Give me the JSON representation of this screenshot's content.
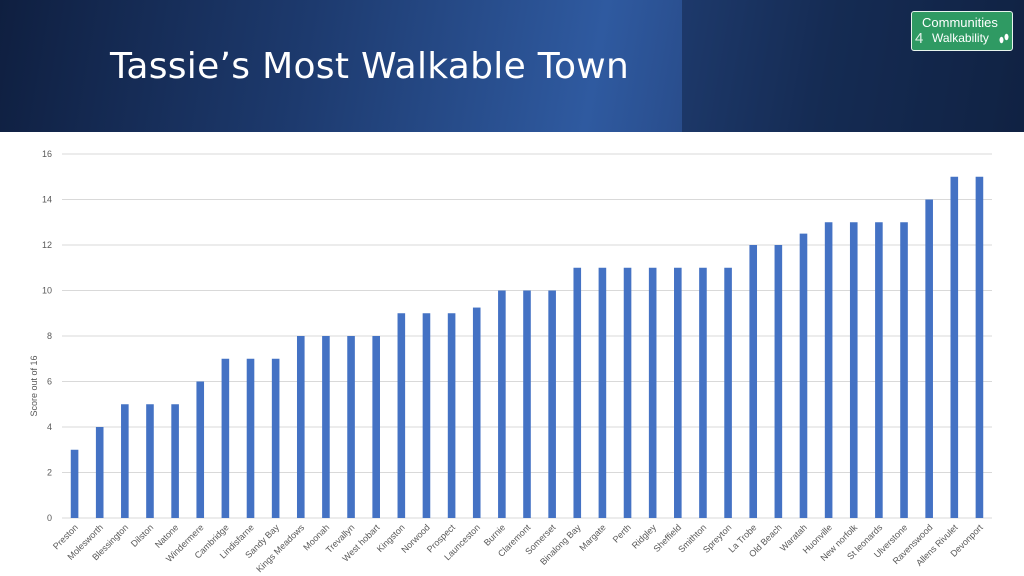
{
  "slide": {
    "title": "Tassie’s Most Walkable Town",
    "logo": {
      "line1": "Communities",
      "line2": "Walkability",
      "number": "4",
      "icon": "footprints-icon"
    }
  },
  "colors": {
    "bar": "#4472c4",
    "grid": "#d9d9d9",
    "header": "#1d3a6e",
    "logo": "#2f9a63"
  },
  "chart_data": {
    "type": "bar",
    "title": "",
    "xlabel": "",
    "ylabel": "Score out of 16",
    "ylim": [
      0,
      16
    ],
    "yticks": [
      0,
      2,
      4,
      6,
      8,
      10,
      12,
      14,
      16
    ],
    "grid": true,
    "categories": [
      "Preston",
      "Molesworth",
      "Blessington",
      "Dilston",
      "Natone",
      "Windermere",
      "Cambridge",
      "Lindisfarne",
      "Sandy Bay",
      "Kings Meadows",
      "Moonah",
      "Trevallyn",
      "West hobart",
      "Kingston",
      "Norwood",
      "Prospect",
      "Launceston",
      "Burnie",
      "Claremont",
      "Somerset",
      "Binalong Bay",
      "Margate",
      "Perth",
      "Ridgley",
      "Sheffield",
      "Smithton",
      "Spreyton",
      "La Trobe",
      "Old Beach",
      "Waratah",
      "Huonville",
      "New norfolk",
      "St leonards",
      "Ulverstone",
      "Ravenswood",
      "Allens Rivulet",
      "Devonport"
    ],
    "values": [
      3,
      4,
      5,
      5,
      5,
      6,
      7,
      7,
      7,
      8,
      8,
      8,
      8,
      9,
      9,
      9,
      9.25,
      10,
      10,
      10,
      11,
      11,
      11,
      11,
      11,
      11,
      11,
      12,
      12,
      12.5,
      13,
      13,
      13,
      13,
      14,
      15,
      15
    ]
  }
}
